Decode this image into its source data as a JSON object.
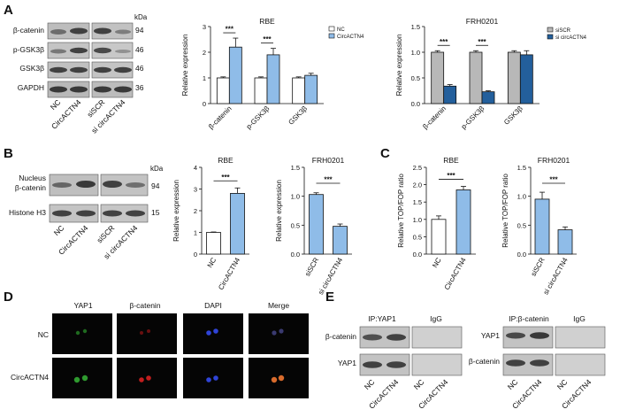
{
  "panels": {
    "A": {
      "letter": "A",
      "blot": {
        "unit": "kDa",
        "rows": [
          {
            "label": "β-catenin",
            "kda": "94"
          },
          {
            "label": "p-GSK3β",
            "kda": "46"
          },
          {
            "label": "GSK3β",
            "kda": "46"
          },
          {
            "label": "GAPDH",
            "kda": "36"
          }
        ],
        "lanes": [
          "NC",
          "CircACTN4",
          "siSCR",
          "si circACTN4"
        ]
      }
    },
    "B": {
      "letter": "B",
      "blot": {
        "unit": "kDa",
        "rows": [
          {
            "label": "Nucleus",
            "label2": "β-catenin",
            "kda": "94"
          },
          {
            "label": "Histone H3",
            "kda": "15"
          }
        ],
        "lanes": [
          "NC",
          "CircACTN4",
          "siSCR",
          "si circACTN4"
        ]
      }
    },
    "C": {
      "letter": "C"
    },
    "D": {
      "letter": "D",
      "columns": [
        "YAP1",
        "β-catenin",
        "DAPI",
        "Merge"
      ],
      "rows": [
        "NC",
        "CircACTN4"
      ],
      "colors": {
        "YAP1": "#2f9a2f",
        "β-catenin": "#c21e1e",
        "DAPI": "#2f44d8"
      }
    },
    "E": {
      "letter": "E",
      "left": {
        "ip_label": "IP:YAP1",
        "igg_label": "IgG",
        "rows": [
          "β-catenin",
          "YAP1"
        ],
        "lanes": [
          "NC",
          "CircACTN4",
          "NC",
          "CircACTN4"
        ]
      },
      "right": {
        "ip_label": "IP:β-catenin",
        "igg_label": "IgG",
        "rows": [
          "YAP1",
          "β-catenin"
        ],
        "lanes": [
          "NC",
          "CircACTN4",
          "NC",
          "CircACTN4"
        ]
      }
    }
  },
  "chart_data": [
    {
      "id": "A_RBE",
      "type": "bar",
      "title": "RBE",
      "ylabel": "Relative expression",
      "categories": [
        "β-catenin",
        "p-GSK3β",
        "GSK3β"
      ],
      "ylim": [
        0,
        3
      ],
      "yticks": [
        0,
        1,
        2,
        3
      ],
      "series": [
        {
          "name": "NC",
          "values": [
            1.0,
            1.0,
            1.0
          ],
          "errors": [
            0.04,
            0.04,
            0.04
          ],
          "color": "#ffffff"
        },
        {
          "name": "CircACTN4",
          "values": [
            2.2,
            1.9,
            1.1
          ],
          "errors": [
            0.35,
            0.25,
            0.08
          ],
          "color": "#8fbce8"
        }
      ],
      "significance": [
        "***",
        "***",
        ""
      ],
      "legend": "top-right"
    },
    {
      "id": "A_FRH0201",
      "type": "bar",
      "title": "FRH0201",
      "ylabel": "Relative expression",
      "categories": [
        "β-catenin",
        "p-GSK3β",
        "GSK3β"
      ],
      "ylim": [
        0,
        1.5
      ],
      "yticks": [
        0.0,
        0.5,
        1.0,
        1.5
      ],
      "series": [
        {
          "name": "siSCR",
          "values": [
            1.0,
            1.0,
            1.0
          ],
          "errors": [
            0.03,
            0.03,
            0.03
          ],
          "color": "#b8b8b8"
        },
        {
          "name": "si circACTN4",
          "values": [
            0.34,
            0.23,
            0.95
          ],
          "errors": [
            0.03,
            0.02,
            0.08
          ],
          "color": "#235f9c"
        }
      ],
      "significance": [
        "***",
        "***",
        ""
      ],
      "legend": "top-right"
    },
    {
      "id": "B_RBE",
      "type": "bar",
      "title": "RBE",
      "ylabel": "Relative expression",
      "categories": [
        "NC",
        "CircACTN4"
      ],
      "ylim": [
        0,
        4
      ],
      "yticks": [
        0,
        1,
        2,
        3,
        4
      ],
      "values": [
        1.0,
        2.8
      ],
      "errors": [
        0.02,
        0.25
      ],
      "colors": [
        "#ffffff",
        "#8fbce8"
      ],
      "significance": "***"
    },
    {
      "id": "B_FRH0201",
      "type": "bar",
      "title": "FRH0201",
      "ylabel": "Relative expression",
      "categories": [
        "siSCR",
        "si circACTN4"
      ],
      "ylim": [
        0,
        1.5
      ],
      "yticks": [
        0.0,
        0.5,
        1.0,
        1.5
      ],
      "values": [
        1.03,
        0.48
      ],
      "errors": [
        0.03,
        0.04
      ],
      "colors": [
        "#8fbce8",
        "#8fbce8"
      ],
      "significance": "***"
    },
    {
      "id": "C_RBE",
      "type": "bar",
      "title": "RBE",
      "ylabel": "Relative TOP/FOP ratio",
      "categories": [
        "NC",
        "CircACTN4"
      ],
      "ylim": [
        0,
        2.5
      ],
      "yticks": [
        0.0,
        0.5,
        1.0,
        1.5,
        2.0,
        2.5
      ],
      "values": [
        1.0,
        1.85
      ],
      "errors": [
        0.1,
        0.1
      ],
      "colors": [
        "#ffffff",
        "#8fbce8"
      ],
      "significance": "***"
    },
    {
      "id": "C_FRH0201",
      "type": "bar",
      "title": "FRH0201",
      "ylabel": "Relative TOP/FOP ratio",
      "categories": [
        "siSCR",
        "si circACTN4"
      ],
      "ylim": [
        0,
        1.5
      ],
      "yticks": [
        0.0,
        0.5,
        1.0,
        1.5
      ],
      "values": [
        0.95,
        0.42
      ],
      "errors": [
        0.12,
        0.05
      ],
      "colors": [
        "#8fbce8",
        "#8fbce8"
      ],
      "significance": "***"
    }
  ]
}
